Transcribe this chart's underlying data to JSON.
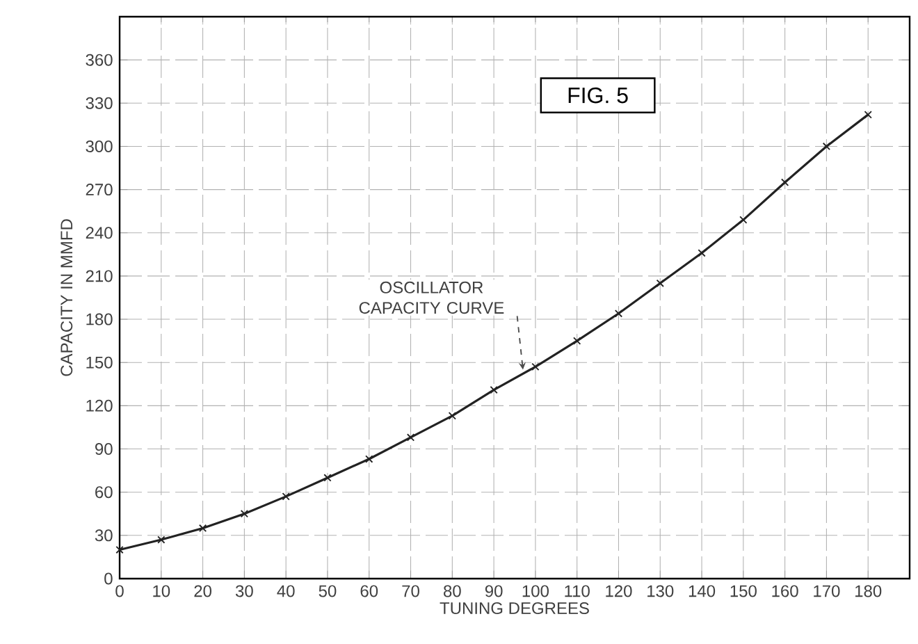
{
  "chart_data": {
    "type": "line",
    "title": "FIG. 5",
    "xlabel": "TUNING DEGREES",
    "ylabel": "CAPACITY IN MMFD",
    "x": [
      0,
      10,
      20,
      30,
      40,
      50,
      60,
      70,
      80,
      90,
      100,
      110,
      120,
      130,
      140,
      150,
      160,
      170,
      180
    ],
    "series": [
      {
        "color": "#222222",
        "values": [
          20,
          27,
          35,
          45,
          57,
          70,
          83,
          98,
          113,
          131,
          147,
          165,
          184,
          205,
          226,
          249,
          275,
          300,
          322
        ]
      }
    ],
    "xlim": [
      0,
      190
    ],
    "ylim": [
      0,
      390
    ],
    "xticks": [
      0,
      10,
      20,
      30,
      40,
      50,
      60,
      70,
      80,
      90,
      100,
      110,
      120,
      130,
      140,
      150,
      160,
      170,
      180
    ],
    "yticks": [
      0,
      30,
      60,
      90,
      120,
      150,
      180,
      210,
      240,
      270,
      300,
      330,
      360
    ],
    "annotations": [
      {
        "text": "OSCILLATOR CAPACITY CURVE",
        "x": 97,
        "y": 145
      }
    ],
    "grid": true,
    "marker": "cross",
    "line_style": "solid"
  }
}
